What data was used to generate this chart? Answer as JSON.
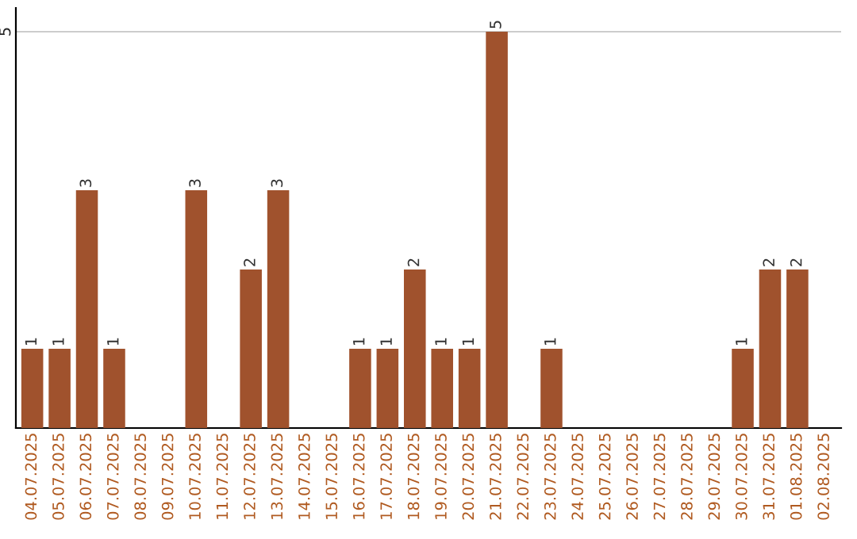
{
  "chart_data": {
    "type": "bar",
    "categories": [
      "04.07.2025",
      "05.07.2025",
      "06.07.2025",
      "07.07.2025",
      "08.07.2025",
      "09.07.2025",
      "10.07.2025",
      "11.07.2025",
      "12.07.2025",
      "13.07.2025",
      "14.07.2025",
      "15.07.2025",
      "16.07.2025",
      "17.07.2025",
      "18.07.2025",
      "19.07.2025",
      "20.07.2025",
      "21.07.2025",
      "22.07.2025",
      "23.07.2025",
      "24.07.2025",
      "25.07.2025",
      "26.07.2025",
      "27.07.2025",
      "28.07.2025",
      "29.07.2025",
      "30.07.2025",
      "31.07.2025",
      "01.08.2025",
      "02.08.2025"
    ],
    "values": [
      1,
      1,
      3,
      1,
      0,
      0,
      3,
      0,
      2,
      3,
      0,
      0,
      1,
      1,
      2,
      1,
      1,
      5,
      0,
      1,
      0,
      0,
      0,
      0,
      0,
      0,
      1,
      2,
      2,
      0
    ],
    "value_labels": [
      "1",
      "1",
      "3",
      "1",
      null,
      null,
      "3",
      null,
      "2",
      "3",
      null,
      null,
      "1",
      "1",
      "2",
      "1",
      "1",
      "5",
      null,
      "1",
      null,
      null,
      null,
      null,
      null,
      null,
      "1",
      "2",
      "2",
      null
    ],
    "color": "#a0522d",
    "ylim": [
      0,
      5.3
    ],
    "yticks": [
      5
    ],
    "grid": "y",
    "legend": false
  }
}
